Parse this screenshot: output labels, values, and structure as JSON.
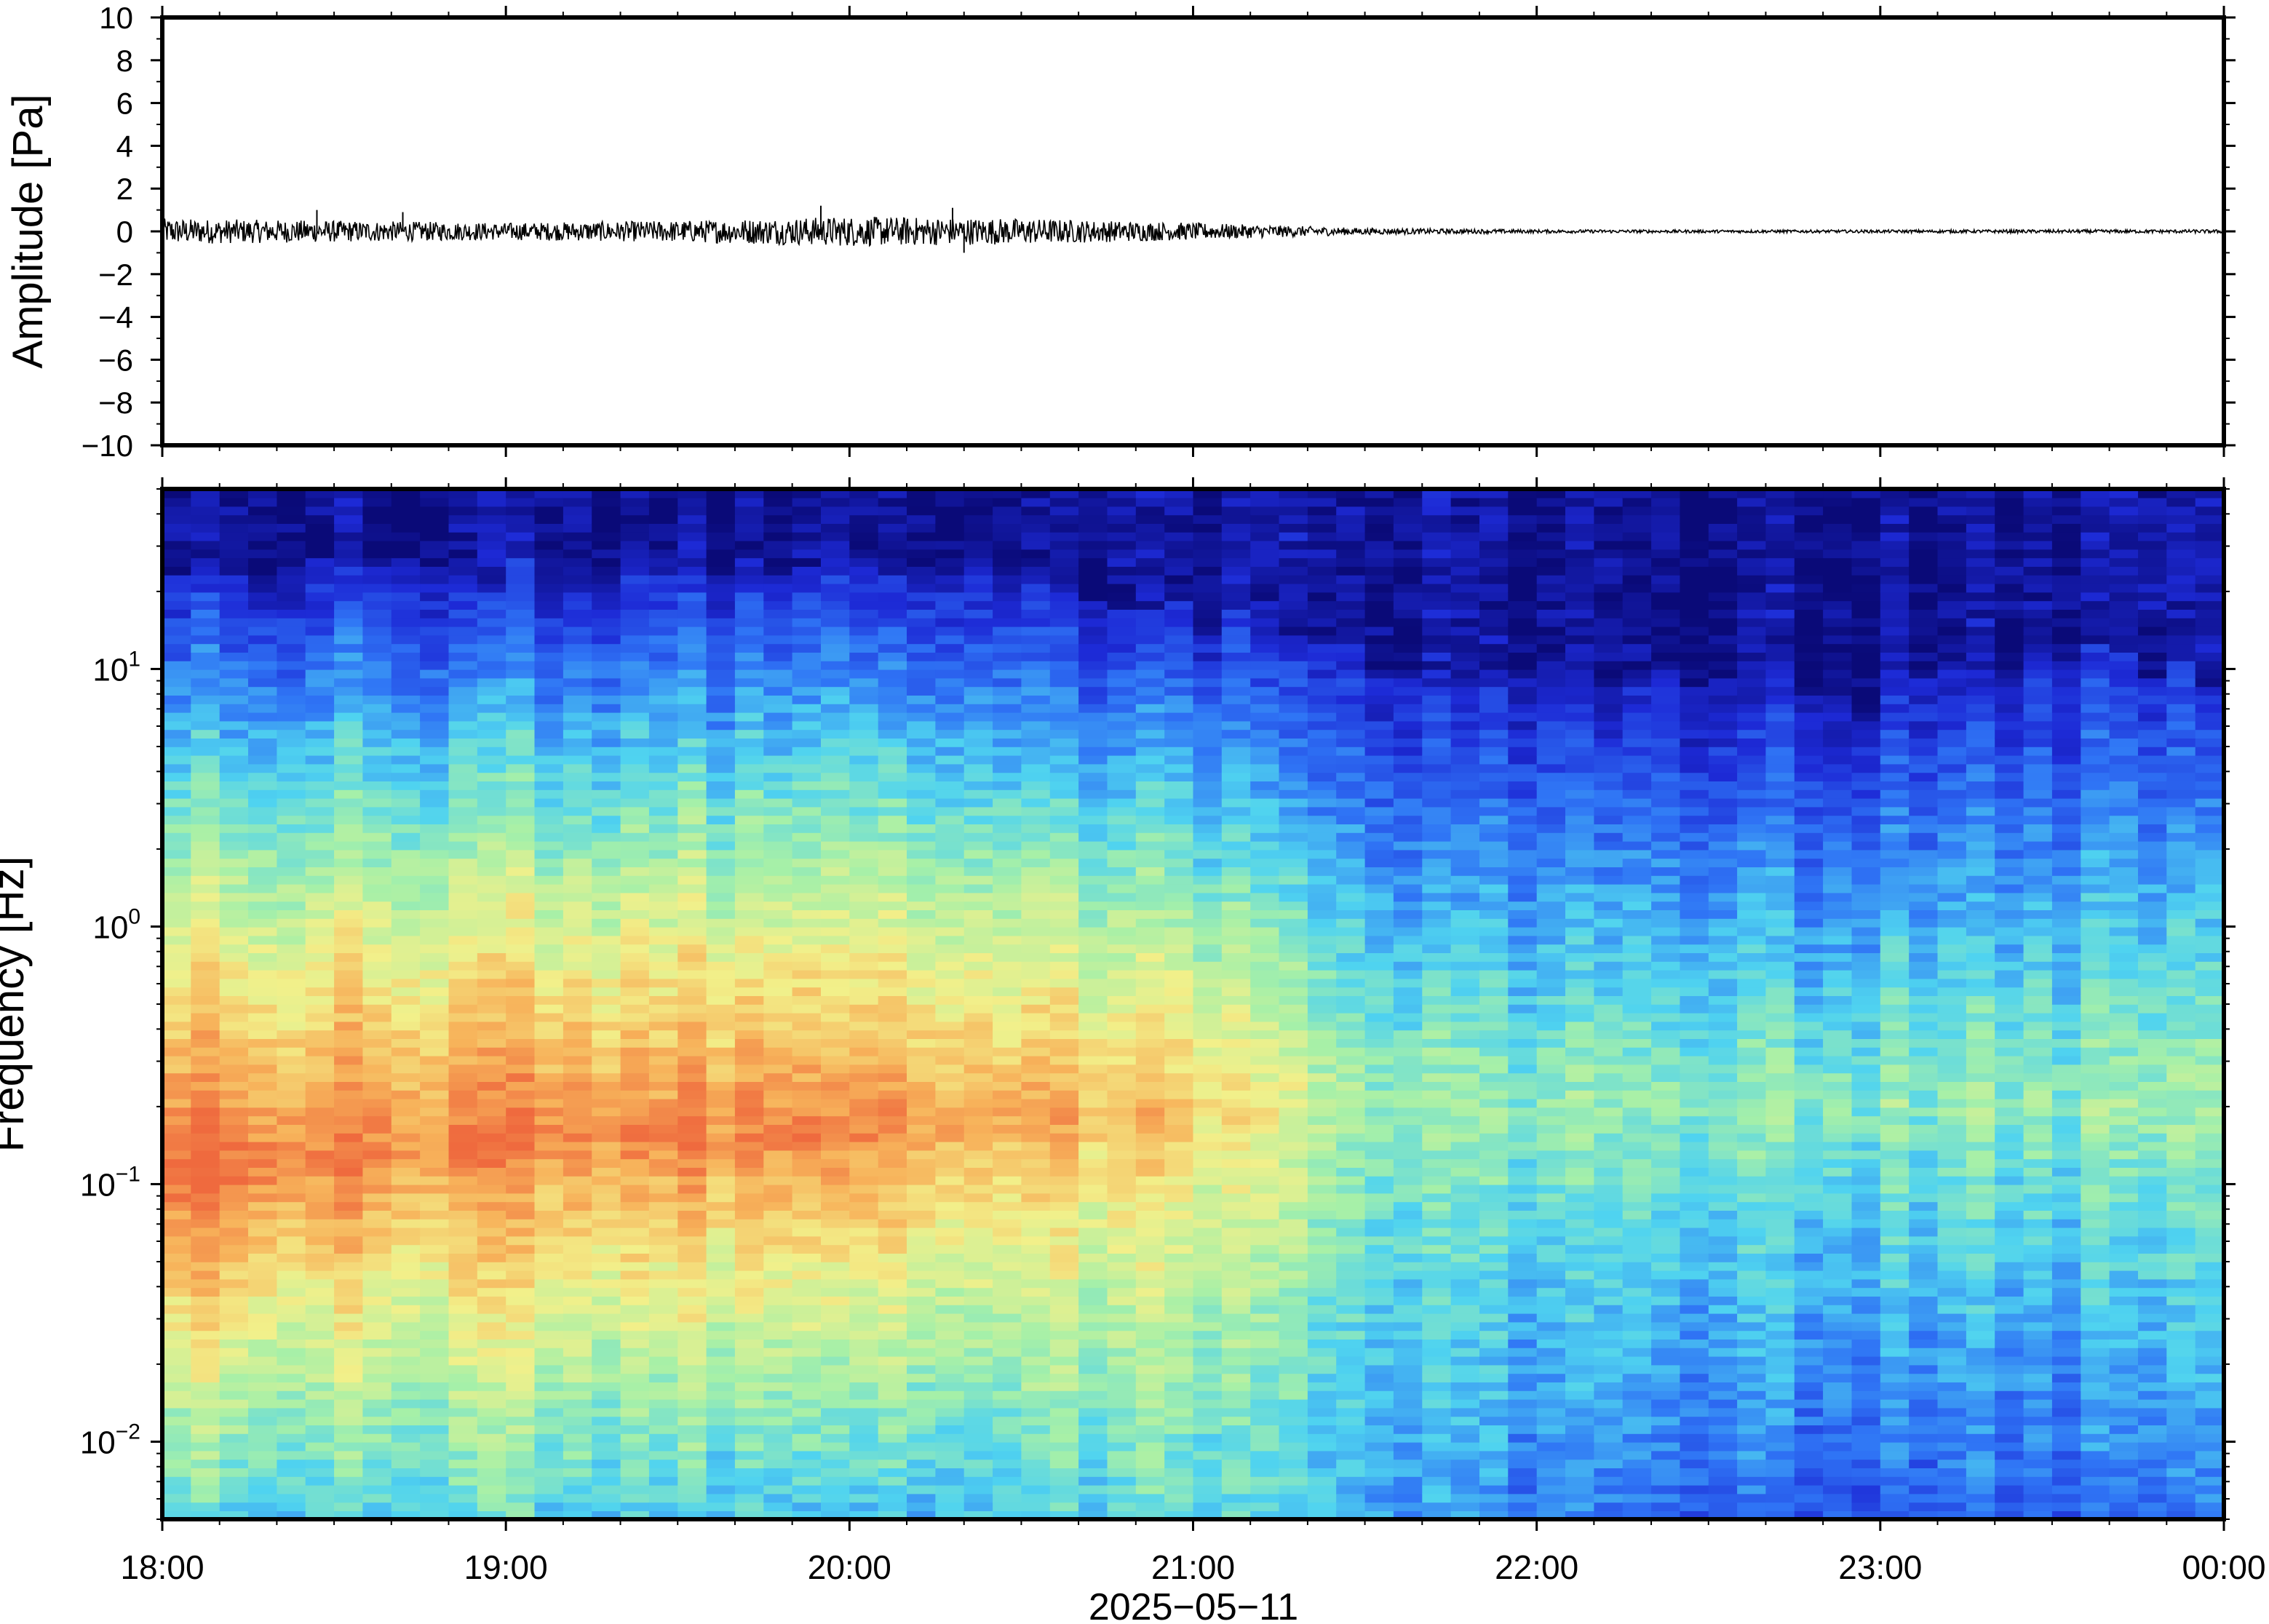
{
  "figure": {
    "date_label": "2025−05−11"
  },
  "chart_data": [
    {
      "type": "line",
      "ylabel": "Amplitude [Pa]",
      "ylim": [
        -10,
        10
      ],
      "yticks": [
        -10,
        -8,
        -6,
        -4,
        -2,
        0,
        2,
        4,
        6,
        8,
        10
      ],
      "ytick_labels": [
        "−10",
        "−8",
        "−6",
        "−4",
        "−2",
        "0",
        "2",
        "4",
        "6",
        "8",
        "10"
      ],
      "xlim": [
        "18:00",
        "00:00"
      ],
      "xticks": [
        "18:00",
        "19:00",
        "20:00",
        "21:00",
        "22:00",
        "23:00",
        "00:00"
      ],
      "grid": false,
      "series": [
        {
          "color": "#000000",
          "envelope_hours": [
            0,
            0.5,
            1,
            1.5,
            2,
            2.5,
            3,
            3.5,
            4,
            4.5,
            5,
            5.5,
            6
          ],
          "envelope_peak_pa": [
            0.6,
            0.5,
            0.4,
            0.5,
            0.7,
            0.6,
            0.4,
            0.15,
            0.08,
            0.07,
            0.07,
            0.08,
            0.08
          ],
          "spikes": [
            {
              "time": "18:27",
              "value": 1.0
            },
            {
              "time": "18:42",
              "value": 0.9
            },
            {
              "time": "19:55",
              "value": 1.2
            },
            {
              "time": "20:18",
              "value": 1.1
            },
            {
              "time": "20:20",
              "value": -1.0
            }
          ]
        }
      ]
    },
    {
      "type": "heatmap",
      "ylabel": "Frequency [Hz]",
      "xlabel": "2025−05−11",
      "yscale": "log",
      "ylim": [
        0.005,
        50
      ],
      "yticks": [
        0.01,
        0.1,
        1,
        10
      ],
      "ytick_labels": [
        {
          "base": "10",
          "exp": "−2"
        },
        {
          "base": "10",
          "exp": "−1"
        },
        {
          "base": "10",
          "exp": "0"
        },
        {
          "base": "10",
          "exp": "1"
        }
      ],
      "xlim": [
        "18:00",
        "00:00"
      ],
      "xticks": [
        "18:00",
        "19:00",
        "20:00",
        "21:00",
        "22:00",
        "23:00",
        "00:00"
      ],
      "xtick_labels": [
        "18:00",
        "19:00",
        "20:00",
        "21:00",
        "22:00",
        "23:00",
        "00:00"
      ],
      "colormap": [
        "#0a0a78",
        "#1d2ad6",
        "#2f74f5",
        "#4fd3f0",
        "#a6f0a8",
        "#f2f08a",
        "#f7b25a",
        "#ef6a3e"
      ],
      "description_profile": {
        "hours": [
          0,
          1,
          2,
          3,
          3.55,
          4,
          5,
          5.5,
          6
        ],
        "upper_cutoff_hz": [
          25,
          24,
          26,
          18,
          10,
          9,
          8,
          12,
          9
        ],
        "peak_band_hz": [
          0.1,
          0.15,
          0.15,
          0.2,
          0.2,
          0.2,
          0.2,
          0.2,
          0.2
        ],
        "peak_level": [
          1.0,
          0.95,
          0.95,
          0.8,
          0.55,
          0.55,
          0.55,
          0.55,
          0.55
        ],
        "low_freq_level": [
          0.45,
          0.45,
          0.4,
          0.45,
          0.35,
          0.3,
          0.25,
          0.25,
          0.25
        ]
      }
    }
  ]
}
